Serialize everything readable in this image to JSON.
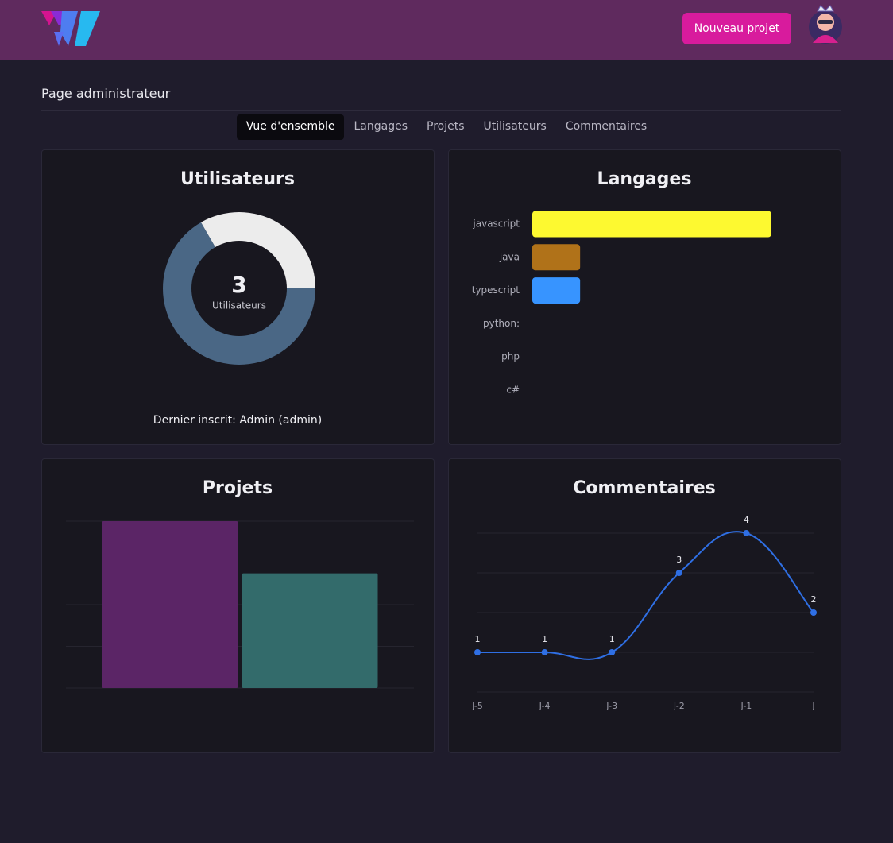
{
  "header": {
    "button": "Nouveau projet"
  },
  "page_title": "Page administrateur",
  "tabs": [
    "Vue d'ensemble",
    "Langages",
    "Projets",
    "Utilisateurs",
    "Commentaires"
  ],
  "chart_data": [
    {
      "type": "doughnut",
      "title": "Utilisateurs",
      "values": [
        2,
        1
      ],
      "colors": [
        "#4a6785",
        "#ececec"
      ],
      "center_value": 3,
      "center_label": "Utilisateurs",
      "footer": "Dernier inscrit: Admin (admin)"
    },
    {
      "type": "hbar",
      "title": "Langages",
      "categories": [
        "javascript",
        "java",
        "typescript",
        "python:",
        "php",
        "c#"
      ],
      "values": [
        5,
        1,
        1,
        0,
        0,
        0
      ],
      "colors": [
        "#fdf930",
        "#b07219",
        "#3794ff",
        "#3572a5",
        "#4f5d95",
        "#178600"
      ],
      "xlim": [
        0,
        6
      ]
    },
    {
      "type": "bar",
      "title": "Projets",
      "values": [
        4,
        2.75
      ],
      "colors": [
        "#5b2566",
        "#336b6b"
      ],
      "ylim": [
        0,
        4
      ],
      "yticks": [
        0,
        1,
        2,
        3,
        4
      ],
      "grid": true
    },
    {
      "type": "line",
      "title": "Commentaires",
      "categories": [
        "J-5",
        "J-4",
        "J-3",
        "J-2",
        "J-1",
        "J"
      ],
      "values": [
        1,
        1,
        1,
        3,
        4,
        2
      ],
      "color": "#2f6fe4",
      "ylim": [
        0,
        4
      ],
      "yticks": [
        0,
        1,
        2,
        3,
        4
      ],
      "grid": true
    }
  ]
}
